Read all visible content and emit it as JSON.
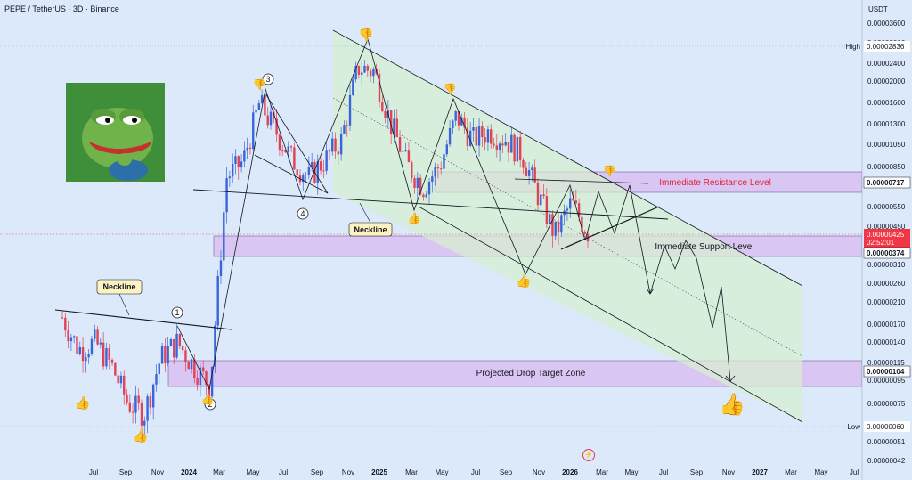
{
  "header": {
    "symbol_title": "PEPE / TetherUS · 3D · Binance",
    "currency": "USDT"
  },
  "price_axis": {
    "ticks": [
      "0.00003600",
      "0.00003000",
      "0.00002400",
      "0.00002000",
      "0.00001600",
      "0.00001300",
      "0.00001050",
      "0.00000850",
      "0.00000700",
      "0.00000550",
      "0.00000450",
      "0.00000310",
      "0.00000260",
      "0.00000210",
      "0.00000170",
      "0.00000140",
      "0.00000115",
      "0.00000095",
      "0.00000075",
      "0.00000060",
      "0.00000051",
      "0.00000042"
    ],
    "high_label": "High",
    "high_value": "0.00002836",
    "low_label": "Low",
    "low_value": "0.00000060",
    "resistance_tag": "0.00000717",
    "current_price": "0.00000425",
    "countdown": "02:52:01",
    "support_tag": "0.00000374",
    "target_tag": "0.00000104"
  },
  "time_axis": {
    "ticks": [
      "Jul",
      "Sep",
      "Nov",
      "2024",
      "Mar",
      "May",
      "Jul",
      "Sep",
      "Nov",
      "2025",
      "Mar",
      "May",
      "Jul",
      "Sep",
      "Nov",
      "2026",
      "Mar",
      "May",
      "Jul",
      "Sep",
      "Nov",
      "2027",
      "Mar",
      "May",
      "Jul"
    ]
  },
  "annotations": {
    "resistance": "Immediate Resistance Level",
    "support": "Immediate Support Level",
    "target": "Projected Drop Target Zone",
    "neckline_1": "Neckline",
    "neckline_2": "Neckline",
    "wave_1": "1",
    "wave_2": "2",
    "wave_3": "3",
    "wave_4": "4"
  },
  "colors": {
    "background": "#dbe9fa",
    "up_candle": "#3a64d8",
    "down_candle": "#e04256",
    "zone_fill": "#d9b9ef",
    "channel_fill": "#d7f0d0",
    "resistance_text": "#e0243f",
    "price_tag": "#f23645"
  },
  "chart_data": {
    "type": "line",
    "title": "PEPE / TetherUS · 3D · Binance",
    "xlabel": "",
    "ylabel": "USDT",
    "y_scale": "log",
    "ylim": [
      4.2e-07,
      3.6e-05
    ],
    "series": [
      {
        "name": "",
        "x": [
          "2023-05",
          "2023-06",
          "2023-07",
          "2023-08",
          "2023-09",
          "2023-10",
          "2023-11",
          "2023-12",
          "2024-01",
          "2024-02",
          "2024-03",
          "2024-04",
          "2024-05",
          "2024-06",
          "2024-07",
          "2024-08",
          "2024-09",
          "2024-10",
          "2024-11",
          "2024-12",
          "2025-01",
          "2025-02",
          "2025-03",
          "2025-04",
          "2025-05",
          "2025-06",
          "2025-07",
          "2025-08",
          "2025-09",
          "2025-10",
          "2025-11",
          "2025-12",
          "2026-01"
        ],
        "y": [
          1.8e-06,
          1.3e-06,
          1.4e-06,
          1.1e-06,
          7.5e-07,
          6.8e-07,
          1.2e-06,
          1.4e-06,
          1.1e-06,
          9e-07,
          7.5e-06,
          8.8e-06,
          1.6e-05,
          1.2e-05,
          9e-06,
          7.5e-06,
          9e-06,
          1.1e-05,
          2.3e-05,
          2.2e-05,
          1.3e-05,
          8.5e-06,
          6.8e-06,
          8.5e-06,
          1.4e-05,
          1.1e-05,
          1.2e-05,
          1.1e-05,
          9.5e-06,
          6.2e-06,
          4.2e-06,
          5.8e-06,
          4.3e-06
        ]
      }
    ],
    "levels": {
      "high": 2.836e-05,
      "resistance": 7.17e-06,
      "current": 4.25e-06,
      "support": 3.74e-06,
      "target": 1.04e-06,
      "low": 6e-07
    }
  }
}
